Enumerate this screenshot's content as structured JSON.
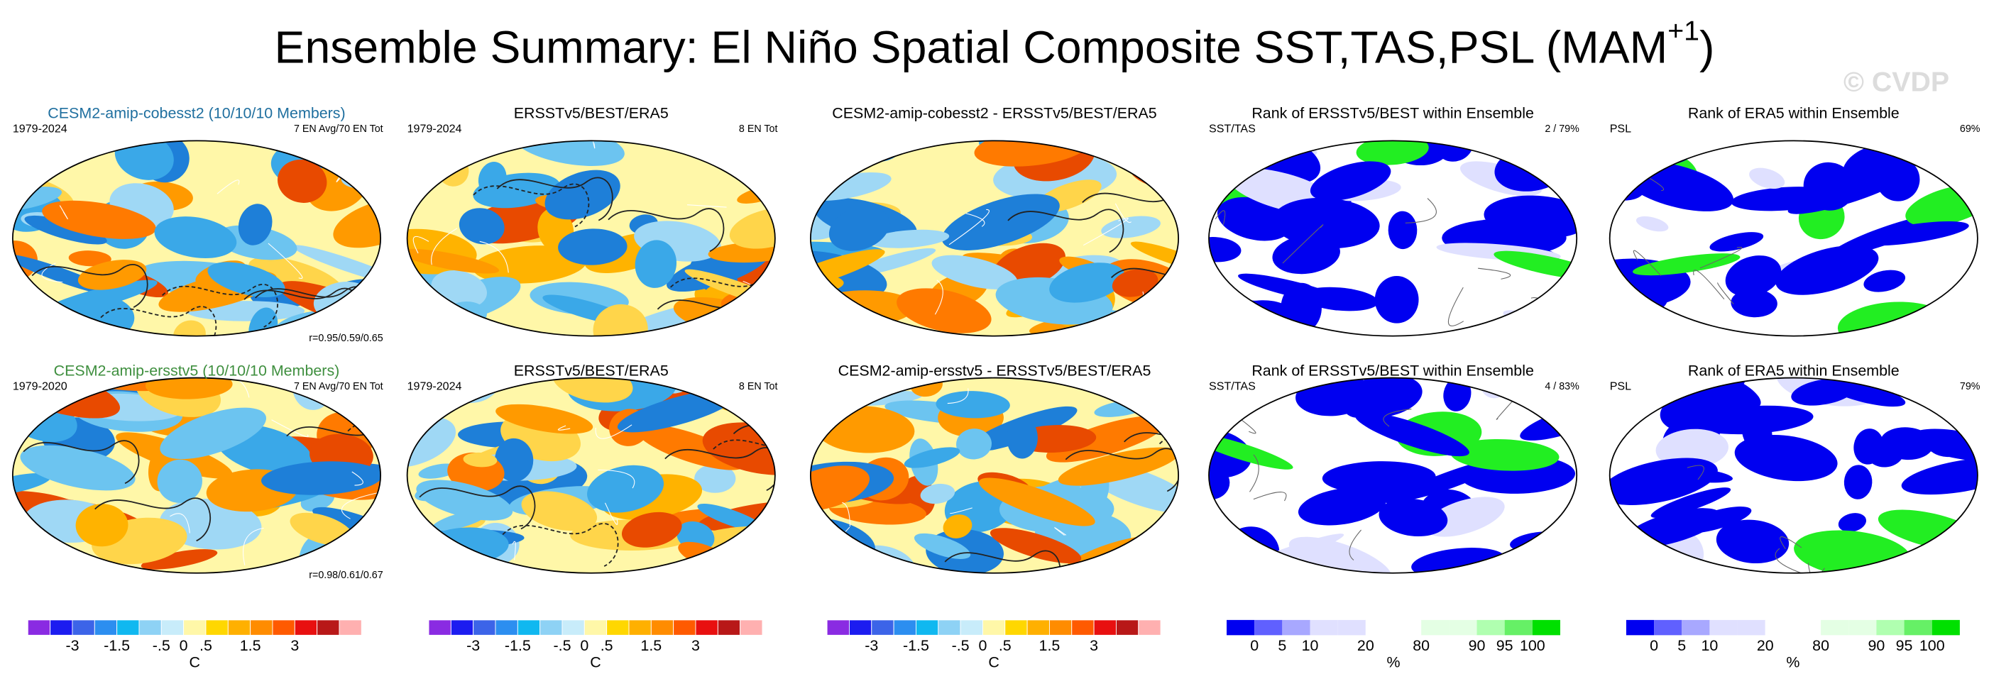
{
  "header": {
    "title": "Ensemble Summary: El Niño Spatial Composite SST,TAS,PSL (MAM",
    "title_superscript": "+1",
    "title_end": ")",
    "watermark": "© CVDP"
  },
  "panels": [
    [
      {
        "title": "CESM2-amip-cobesst2 (10/10/10 Members)",
        "left": "1979-2024",
        "right": "7 EN Avg/70 EN Tot",
        "bottom_right": "r=0.95/0.59/0.65"
      },
      {
        "title": "ERSSTv5/BEST/ERA5",
        "left": "1979-2024",
        "right": "8 EN Tot"
      },
      {
        "title": "CESM2-amip-cobesst2 - ERSSTv5/BEST/ERA5"
      },
      {
        "title": "Rank of ERSSTv5/BEST within Ensemble",
        "left": "SST/TAS",
        "right": "2 /  79%"
      },
      {
        "title": "Rank of ERA5 within Ensemble",
        "left": "PSL",
        "right": "69%"
      }
    ],
    [
      {
        "title": "CESM2-amip-ersstv5 (10/10/10 Members)",
        "left": "1979-2020",
        "right": "7 EN Avg/70 EN Tot",
        "bottom_right": "r=0.98/0.61/0.67"
      },
      {
        "title": "ERSSTv5/BEST/ERA5",
        "left": "1979-2024",
        "right": "8 EN Tot"
      },
      {
        "title": "CESM2-amip-ersstv5 - ERSSTv5/BEST/ERA5"
      },
      {
        "title": "Rank of ERSSTv5/BEST within Ensemble",
        "left": "SST/TAS",
        "right": "4 /  83%"
      },
      {
        "title": "Rank of ERA5 within Ensemble",
        "left": "PSL",
        "right": "79%"
      }
    ]
  ],
  "colorbars": [
    {
      "labels": [
        "-3",
        "-1.5",
        "-.5",
        "0",
        ".5",
        "1.5",
        "3"
      ],
      "unit": "C"
    },
    {
      "labels": [
        "-3",
        "-1.5",
        "-.5",
        "0",
        ".5",
        "1.5",
        "3"
      ],
      "unit": "C"
    },
    {
      "labels": [
        "-3",
        "-1.5",
        "-.5",
        "0",
        ".5",
        "1.5",
        "3"
      ],
      "unit": "C"
    },
    {
      "labels": [
        "0",
        "5",
        "10",
        "20",
        "80",
        "90",
        "95",
        "100"
      ],
      "unit": "%"
    },
    {
      "labels": [
        "0",
        "5",
        "10",
        "20",
        "80",
        "90",
        "95",
        "100"
      ],
      "unit": "%"
    }
  ]
}
